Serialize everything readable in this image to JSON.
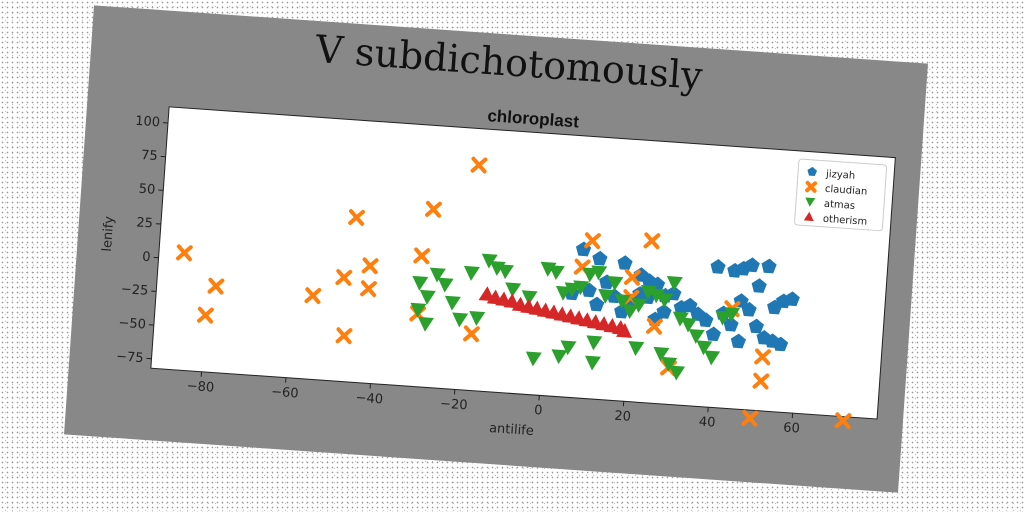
{
  "figure": {
    "suptitle": "V subdichotomously"
  },
  "chart_data": {
    "type": "scatter",
    "title": "chloroplast",
    "xlabel": "antilife",
    "ylabel": "lenify",
    "xlim": [
      -92,
      80
    ],
    "ylim": [
      -82,
      112
    ],
    "xticks": [
      -80,
      -60,
      -40,
      -20,
      0,
      20,
      40,
      60
    ],
    "yticks": [
      -75,
      -50,
      -25,
      0,
      25,
      50,
      75,
      100
    ],
    "legend_position": "upper right",
    "series": [
      {
        "name": "jizyah",
        "marker": "pentagon",
        "color": "#1f77b4",
        "points": [
          [
            8,
            28
          ],
          [
            12,
            22
          ],
          [
            18,
            20
          ],
          [
            22,
            12
          ],
          [
            24,
            8
          ],
          [
            26,
            6
          ],
          [
            14,
            5
          ],
          [
            10,
            -2
          ],
          [
            16,
            -5
          ],
          [
            20,
            -8
          ],
          [
            24,
            -4
          ],
          [
            28,
            -2
          ],
          [
            30,
            0
          ],
          [
            32,
            -10
          ],
          [
            36,
            -14
          ],
          [
            38,
            -18
          ],
          [
            40,
            22
          ],
          [
            44,
            20
          ],
          [
            46,
            22
          ],
          [
            48,
            25
          ],
          [
            52,
            25
          ],
          [
            50,
            10
          ],
          [
            46,
            -2
          ],
          [
            48,
            -8
          ],
          [
            54,
            -5
          ],
          [
            56,
            0
          ],
          [
            42,
            -12
          ],
          [
            44,
            -20
          ],
          [
            50,
            -20
          ],
          [
            52,
            -28
          ],
          [
            56,
            -32
          ],
          [
            54,
            -30
          ],
          [
            40,
            -28
          ],
          [
            46,
            -32
          ],
          [
            58,
            2
          ],
          [
            34,
            -8
          ],
          [
            28,
            -14
          ],
          [
            22,
            -2
          ],
          [
            6,
            -5
          ],
          [
            12,
            -12
          ],
          [
            18,
            -16
          ],
          [
            26,
            -20
          ]
        ]
      },
      {
        "name": "claudian",
        "marker": "x",
        "color": "#ff7f0e",
        "points": [
          [
            -86,
            5
          ],
          [
            -78,
            -18
          ],
          [
            -80,
            -40
          ],
          [
            -55,
            -20
          ],
          [
            -48,
            -5
          ],
          [
            -42,
            5
          ],
          [
            -42,
            -12
          ],
          [
            -46,
            40
          ],
          [
            -47,
            -48
          ],
          [
            -28,
            50
          ],
          [
            -30,
            15
          ],
          [
            -30,
            -28
          ],
          [
            -18,
            85
          ],
          [
            -17,
            -40
          ],
          [
            8,
            15
          ],
          [
            10,
            35
          ],
          [
            20,
            10
          ],
          [
            24,
            38
          ],
          [
            20,
            -5
          ],
          [
            26,
            -25
          ],
          [
            30,
            -55
          ],
          [
            44,
            -8
          ],
          [
            50,
            -88
          ],
          [
            52,
            -42
          ],
          [
            52,
            -60
          ],
          [
            72,
            -85
          ]
        ]
      },
      {
        "name": "atmas",
        "marker": "triangle_down",
        "color": "#2ca02c",
        "points": [
          [
            -30,
            -5
          ],
          [
            -28,
            -15
          ],
          [
            -30,
            -25
          ],
          [
            -28,
            -35
          ],
          [
            -26,
            2
          ],
          [
            -24,
            -5
          ],
          [
            -22,
            -18
          ],
          [
            -20,
            -30
          ],
          [
            -18,
            5
          ],
          [
            -16,
            -28
          ],
          [
            -14,
            15
          ],
          [
            -12,
            10
          ],
          [
            -10,
            8
          ],
          [
            -8,
            -5
          ],
          [
            -4,
            -10
          ],
          [
            0,
            12
          ],
          [
            2,
            10
          ],
          [
            4,
            -5
          ],
          [
            6,
            -2
          ],
          [
            8,
            0
          ],
          [
            10,
            10
          ],
          [
            12,
            12
          ],
          [
            14,
            -5
          ],
          [
            16,
            5
          ],
          [
            18,
            -8
          ],
          [
            20,
            -15
          ],
          [
            22,
            -10
          ],
          [
            24,
            0
          ],
          [
            26,
            -2
          ],
          [
            28,
            -5
          ],
          [
            30,
            8
          ],
          [
            32,
            -18
          ],
          [
            34,
            -22
          ],
          [
            36,
            -30
          ],
          [
            38,
            -38
          ],
          [
            40,
            -45
          ],
          [
            42,
            -15
          ],
          [
            44,
            -12
          ],
          [
            12,
            -40
          ],
          [
            22,
            -42
          ],
          [
            28,
            -45
          ],
          [
            30,
            -52
          ],
          [
            32,
            -58
          ],
          [
            -2,
            -55
          ],
          [
            4,
            -52
          ],
          [
            12,
            -55
          ],
          [
            6,
            -45
          ]
        ]
      },
      {
        "name": "otherism",
        "marker": "triangle_up",
        "color": "#d62728",
        "points": [
          [
            -14,
            -10
          ],
          [
            -10,
            -13
          ],
          [
            -6,
            -16
          ],
          [
            -2,
            -18
          ],
          [
            2,
            -20
          ],
          [
            6,
            -22
          ],
          [
            10,
            -24
          ],
          [
            14,
            -26
          ],
          [
            18,
            -28
          ],
          [
            -12,
            -12
          ],
          [
            -8,
            -14
          ],
          [
            -4,
            -17
          ],
          [
            0,
            -19
          ],
          [
            4,
            -21
          ],
          [
            8,
            -23
          ],
          [
            12,
            -25
          ],
          [
            16,
            -27
          ],
          [
            19,
            -30
          ]
        ]
      }
    ]
  }
}
